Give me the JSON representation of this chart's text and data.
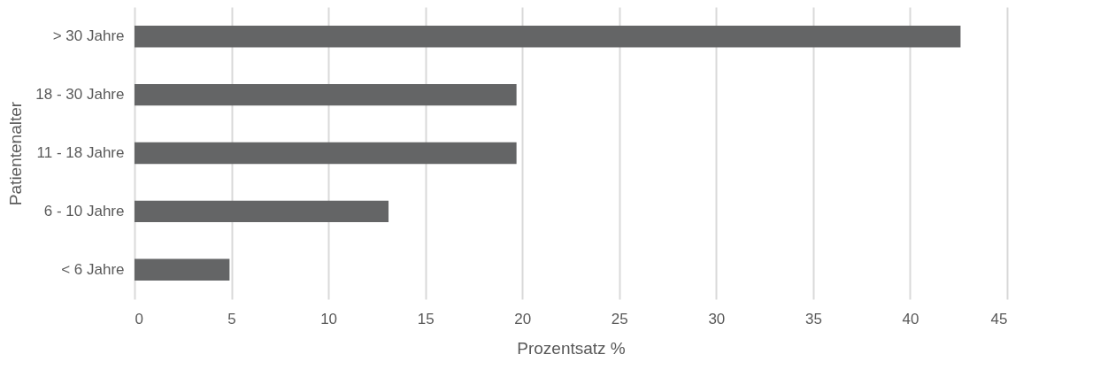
{
  "chart_data": {
    "type": "bar",
    "orientation": "horizontal",
    "xlabel": "Prozentsatz %",
    "ylabel": "Patientenalter",
    "categories": [
      "> 30 Jahre",
      "18 - 30 Jahre",
      "11 - 18 Jahre",
      "6 - 10 Jahre",
      "< 6 Jahre"
    ],
    "values": [
      42.6,
      19.7,
      19.7,
      13.1,
      4.9
    ],
    "color": "#646566",
    "xlim": [
      0,
      45
    ],
    "xticks": [
      0,
      5,
      10,
      15,
      20,
      25,
      30,
      35,
      40,
      45
    ],
    "grid": "x"
  }
}
